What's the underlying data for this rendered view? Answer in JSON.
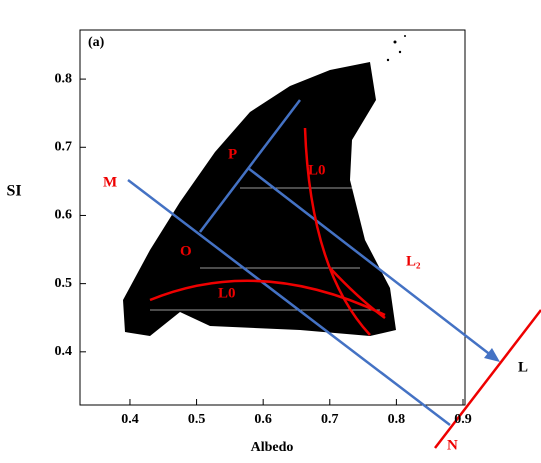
{
  "chart_data": {
    "type": "scatter",
    "panel_label": "(a)",
    "x_label": "Albedo",
    "y_label": "SI",
    "xlim": [
      0.325,
      0.903
    ],
    "ylim": [
      0.322,
      0.872
    ],
    "xticks": [
      0.4,
      0.5,
      0.6,
      0.7,
      0.8,
      0.9
    ],
    "yticks": [
      0.4,
      0.5,
      0.6,
      0.7,
      0.8
    ],
    "color": "#000000",
    "annotations": [
      "M",
      "O",
      "P",
      "L0",
      "L0",
      "L₂",
      "L",
      "N"
    ]
  }
}
